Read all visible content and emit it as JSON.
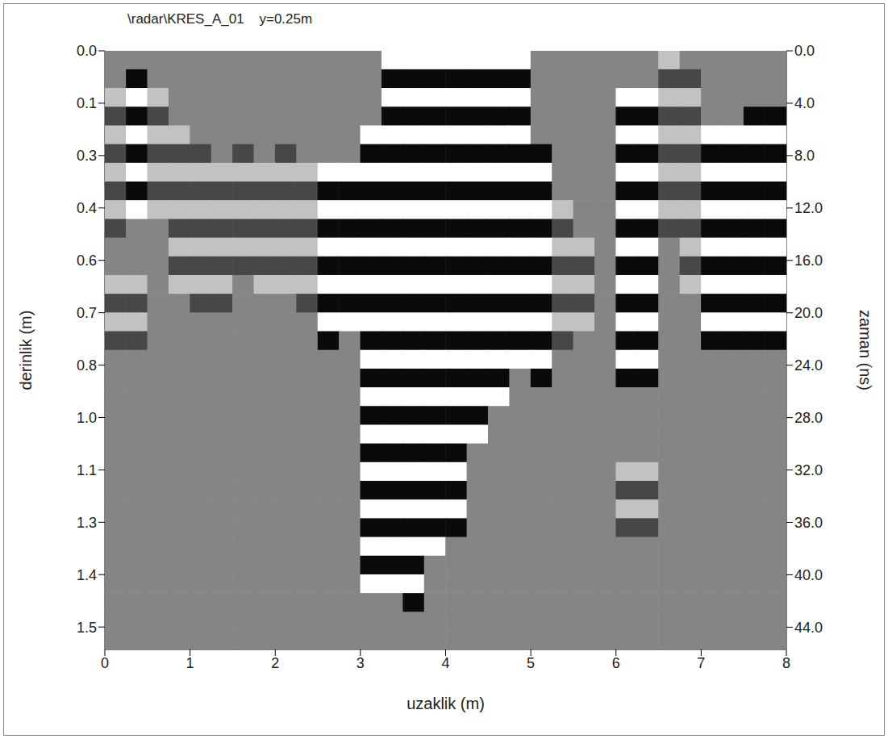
{
  "chart_data": {
    "type": "heatmap",
    "title": "\\radar\\KRES_A_01    y=0.25m",
    "x_label": "uzaklik (m)",
    "y_label": "derinlik (m)",
    "y2_label": "zaman (ns)",
    "xlim": [
      0,
      8
    ],
    "xticks": [
      0,
      1,
      2,
      3,
      4,
      5,
      6,
      7,
      8
    ],
    "ylim": [
      0,
      1.6
    ],
    "yticks": [
      {
        "value": 0,
        "label": "0.0"
      },
      {
        "value": 0.14,
        "label": "0.1"
      },
      {
        "value": 0.28,
        "label": "0.3"
      },
      {
        "value": 0.42,
        "label": "0.4"
      },
      {
        "value": 0.56,
        "label": "0.6"
      },
      {
        "value": 0.7,
        "label": "0.7"
      },
      {
        "value": 0.84,
        "label": "0.8"
      },
      {
        "value": 0.98,
        "label": "1.0"
      },
      {
        "value": 1.12,
        "label": "1.1"
      },
      {
        "value": 1.26,
        "label": "1.3"
      },
      {
        "value": 1.4,
        "label": "1.4"
      },
      {
        "value": 1.54,
        "label": "1.5"
      }
    ],
    "y2lim": [
      0,
      45.7
    ],
    "y2ticks": [
      {
        "value": 0,
        "label": "0.0"
      },
      {
        "value": 4,
        "label": "4.0"
      },
      {
        "value": 8,
        "label": "8.0"
      },
      {
        "value": 12,
        "label": "12.0"
      },
      {
        "value": 16,
        "label": "16.0"
      },
      {
        "value": 20,
        "label": "20.0"
      },
      {
        "value": 24,
        "label": "24.0"
      },
      {
        "value": 28,
        "label": "28.0"
      },
      {
        "value": 32,
        "label": "32.0"
      },
      {
        "value": 36,
        "label": "36.0"
      },
      {
        "value": 40,
        "label": "40.0"
      },
      {
        "value": 44,
        "label": "44.0"
      }
    ],
    "grid": false,
    "value_range": [
      -2,
      2
    ],
    "x": [
      0.125,
      0.375,
      0.625,
      0.875,
      1.125,
      1.375,
      1.625,
      1.875,
      2.125,
      2.375,
      2.625,
      2.875,
      3.125,
      3.375,
      3.625,
      3.875,
      4.125,
      4.375,
      4.625,
      4.875,
      5.125,
      5.375,
      5.625,
      5.875,
      6.125,
      6.375,
      6.625,
      6.875,
      7.125,
      7.375,
      7.625,
      7.875
    ],
    "y": [
      0.025,
      0.075,
      0.125,
      0.175,
      0.225,
      0.275,
      0.325,
      0.375,
      0.425,
      0.475,
      0.525,
      0.575,
      0.625,
      0.675,
      0.725,
      0.775,
      0.825,
      0.875,
      0.925,
      0.975,
      1.025,
      1.075,
      1.125,
      1.175,
      1.225,
      1.275,
      1.325,
      1.375,
      1.425,
      1.475,
      1.525,
      1.575
    ],
    "cells": [
      [
        0,
        0,
        0,
        0,
        0,
        0,
        0,
        0,
        0,
        0,
        0,
        0,
        0,
        2,
        2,
        2,
        2,
        2,
        2,
        2,
        0,
        0,
        0,
        0,
        0,
        0,
        1,
        0,
        0,
        0,
        0,
        0
      ],
      [
        0,
        -2,
        0,
        0,
        0,
        0,
        0,
        0,
        0,
        0,
        0,
        0,
        0,
        -2,
        -2,
        -2,
        -2,
        -2,
        -2,
        -2,
        0,
        0,
        0,
        0,
        0,
        0,
        -1,
        -1,
        0,
        0,
        0,
        0
      ],
      [
        1,
        2,
        1,
        0,
        0,
        0,
        0,
        0,
        0,
        0,
        0,
        0,
        0,
        2,
        2,
        2,
        2,
        2,
        2,
        2,
        0,
        0,
        0,
        0,
        2,
        2,
        1,
        1,
        0,
        0,
        0,
        0
      ],
      [
        -1,
        -2,
        -1,
        0,
        0,
        0,
        0,
        0,
        0,
        0,
        0,
        0,
        0,
        -2,
        -2,
        -2,
        -2,
        -2,
        -2,
        -2,
        0,
        0,
        0,
        0,
        -2,
        -2,
        -1,
        -1,
        0,
        0,
        -2,
        -2
      ],
      [
        1,
        2,
        1,
        1,
        0,
        0,
        0,
        0,
        0,
        0,
        0,
        0,
        2,
        2,
        2,
        2,
        2,
        2,
        2,
        2,
        0,
        0,
        0,
        0,
        2,
        2,
        1,
        1,
        2,
        2,
        2,
        2
      ],
      [
        -1,
        -2,
        -1,
        -1,
        -1,
        0,
        -1,
        0,
        -1,
        0,
        0,
        0,
        -2,
        -2,
        -2,
        -2,
        -2,
        -2,
        -2,
        -2,
        -2,
        0,
        0,
        0,
        -2,
        -2,
        -1,
        -1,
        -2,
        -2,
        -2,
        -2
      ],
      [
        1,
        2,
        1,
        1,
        1,
        1,
        1,
        1,
        1,
        1,
        2,
        2,
        2,
        2,
        2,
        2,
        2,
        2,
        2,
        2,
        2,
        0,
        0,
        0,
        2,
        2,
        1,
        1,
        2,
        2,
        2,
        2
      ],
      [
        -1,
        -2,
        -1,
        -1,
        -1,
        -1,
        -1,
        -1,
        -1,
        -1,
        -2,
        -2,
        -2,
        -2,
        -2,
        -2,
        -2,
        -2,
        -2,
        -2,
        -2,
        0,
        0,
        0,
        -2,
        -2,
        -1,
        -1,
        -2,
        -2,
        -2,
        -2
      ],
      [
        1,
        2,
        1,
        1,
        1,
        1,
        1,
        1,
        1,
        1,
        2,
        2,
        2,
        2,
        2,
        2,
        2,
        2,
        2,
        2,
        2,
        1,
        0,
        0,
        2,
        2,
        1,
        1,
        2,
        2,
        2,
        2
      ],
      [
        -1,
        0,
        0,
        -1,
        -1,
        -1,
        -1,
        -1,
        -1,
        -1,
        -2,
        -2,
        -2,
        -2,
        -2,
        -2,
        -2,
        -2,
        -2,
        -2,
        -2,
        -1,
        0,
        0,
        -2,
        -2,
        -1,
        -1,
        -2,
        -2,
        -2,
        -2
      ],
      [
        0,
        0,
        0,
        1,
        1,
        1,
        1,
        1,
        1,
        1,
        2,
        2,
        2,
        2,
        2,
        2,
        2,
        2,
        2,
        2,
        2,
        1,
        1,
        0,
        2,
        2,
        0,
        1,
        2,
        2,
        2,
        2
      ],
      [
        0,
        0,
        0,
        -1,
        -1,
        -1,
        -1,
        -1,
        -1,
        -1,
        -2,
        -2,
        -2,
        -2,
        -2,
        -2,
        -2,
        -2,
        -2,
        -2,
        -2,
        -1,
        -1,
        0,
        -2,
        -2,
        0,
        -1,
        -2,
        -2,
        -2,
        -2
      ],
      [
        1,
        1,
        0,
        1,
        1,
        1,
        0,
        1,
        1,
        1,
        2,
        2,
        2,
        2,
        2,
        2,
        2,
        2,
        2,
        2,
        2,
        1,
        1,
        0,
        2,
        2,
        0,
        1,
        2,
        2,
        2,
        2
      ],
      [
        -1,
        -1,
        0,
        0,
        -1,
        -1,
        0,
        0,
        0,
        -1,
        -2,
        -2,
        -2,
        -2,
        -2,
        -2,
        -2,
        -2,
        -2,
        -2,
        -2,
        -1,
        -1,
        0,
        -2,
        -2,
        0,
        0,
        -2,
        -2,
        -2,
        -2
      ],
      [
        1,
        1,
        0,
        0,
        0,
        0,
        0,
        0,
        0,
        0,
        2,
        2,
        2,
        2,
        2,
        2,
        2,
        2,
        2,
        2,
        2,
        1,
        1,
        0,
        2,
        2,
        0,
        0,
        2,
        2,
        2,
        2
      ],
      [
        -1,
        -1,
        0,
        0,
        0,
        0,
        0,
        0,
        0,
        0,
        -2,
        0,
        -2,
        -2,
        -2,
        -2,
        -2,
        -2,
        -2,
        -2,
        -2,
        -1,
        0,
        0,
        -2,
        -2,
        0,
        0,
        -2,
        -2,
        -2,
        -2
      ],
      [
        0,
        0,
        0,
        0,
        0,
        0,
        0,
        0,
        0,
        0,
        0,
        0,
        2,
        2,
        2,
        2,
        2,
        2,
        2,
        2,
        2,
        0,
        0,
        0,
        2,
        2,
        0,
        0,
        0,
        0,
        0,
        0
      ],
      [
        0,
        0,
        0,
        0,
        0,
        0,
        0,
        0,
        0,
        0,
        0,
        0,
        -2,
        -2,
        -2,
        -2,
        -2,
        -2,
        -2,
        0,
        -2,
        0,
        0,
        0,
        -2,
        -2,
        0,
        0,
        0,
        0,
        0,
        0
      ],
      [
        0,
        0,
        0,
        0,
        0,
        0,
        0,
        0,
        0,
        0,
        0,
        0,
        2,
        2,
        2,
        2,
        2,
        2,
        2,
        0,
        0,
        0,
        0,
        0,
        0,
        0,
        0,
        0,
        0,
        0,
        0,
        0
      ],
      [
        0,
        0,
        0,
        0,
        0,
        0,
        0,
        0,
        0,
        0,
        0,
        0,
        -2,
        -2,
        -2,
        -2,
        -2,
        -2,
        0,
        0,
        0,
        0,
        0,
        0,
        0,
        0,
        0,
        0,
        0,
        0,
        0,
        0
      ],
      [
        0,
        0,
        0,
        0,
        0,
        0,
        0,
        0,
        0,
        0,
        0,
        0,
        2,
        2,
        2,
        2,
        2,
        2,
        0,
        0,
        0,
        0,
        0,
        0,
        0,
        0,
        0,
        0,
        0,
        0,
        0,
        0
      ],
      [
        0,
        0,
        0,
        0,
        0,
        0,
        0,
        0,
        0,
        0,
        0,
        0,
        -2,
        -2,
        -2,
        -2,
        -2,
        0,
        0,
        0,
        0,
        0,
        0,
        0,
        0,
        0,
        0,
        0,
        0,
        0,
        0,
        0
      ],
      [
        0,
        0,
        0,
        0,
        0,
        0,
        0,
        0,
        0,
        0,
        0,
        0,
        2,
        2,
        2,
        2,
        2,
        0,
        0,
        0,
        0,
        0,
        0,
        0,
        1,
        1,
        0,
        0,
        0,
        0,
        0,
        0
      ],
      [
        0,
        0,
        0,
        0,
        0,
        0,
        0,
        0,
        0,
        0,
        0,
        0,
        -2,
        -2,
        -2,
        -2,
        -2,
        0,
        0,
        0,
        0,
        0,
        0,
        0,
        -1,
        -1,
        0,
        0,
        0,
        0,
        0,
        0
      ],
      [
        0,
        0,
        0,
        0,
        0,
        0,
        0,
        0,
        0,
        0,
        0,
        0,
        2,
        2,
        2,
        2,
        2,
        0,
        0,
        0,
        0,
        0,
        0,
        0,
        1,
        1,
        0,
        0,
        0,
        0,
        0,
        0
      ],
      [
        0,
        0,
        0,
        0,
        0,
        0,
        0,
        0,
        0,
        0,
        0,
        0,
        -2,
        -2,
        -2,
        -2,
        -2,
        0,
        0,
        0,
        0,
        0,
        0,
        0,
        -1,
        -1,
        0,
        0,
        0,
        0,
        0,
        0
      ],
      [
        0,
        0,
        0,
        0,
        0,
        0,
        0,
        0,
        0,
        0,
        0,
        0,
        2,
        2,
        2,
        2,
        0,
        0,
        0,
        0,
        0,
        0,
        0,
        0,
        0,
        0,
        0,
        0,
        0,
        0,
        0,
        0
      ],
      [
        0,
        0,
        0,
        0,
        0,
        0,
        0,
        0,
        0,
        0,
        0,
        0,
        -2,
        -2,
        -2,
        0,
        0,
        0,
        0,
        0,
        0,
        0,
        0,
        0,
        0,
        0,
        0,
        0,
        0,
        0,
        0,
        0
      ],
      [
        0,
        0,
        0,
        0,
        0,
        0,
        0,
        0,
        0,
        0,
        0,
        0,
        2,
        2,
        2,
        0,
        0,
        0,
        0,
        0,
        0,
        0,
        0,
        0,
        0,
        0,
        0,
        0,
        0,
        0,
        0,
        0
      ],
      [
        0,
        0,
        0,
        0,
        0,
        0,
        0,
        0,
        0,
        0,
        0,
        0,
        0,
        0,
        -2,
        0,
        0,
        0,
        0,
        0,
        0,
        0,
        0,
        0,
        0,
        0,
        0,
        0,
        0,
        0,
        0,
        0
      ],
      [
        0,
        0,
        0,
        0,
        0,
        0,
        0,
        0,
        0,
        0,
        0,
        0,
        0,
        0,
        0,
        0,
        0,
        0,
        0,
        0,
        0,
        0,
        0,
        0,
        0,
        0,
        0,
        0,
        0,
        0,
        0,
        0
      ],
      [
        0,
        0,
        0,
        0,
        0,
        0,
        0,
        0,
        0,
        0,
        0,
        0,
        0,
        0,
        0,
        0,
        0,
        0,
        0,
        0,
        0,
        0,
        0,
        0,
        0,
        0,
        0,
        0,
        0,
        0,
        0,
        0
      ]
    ]
  }
}
